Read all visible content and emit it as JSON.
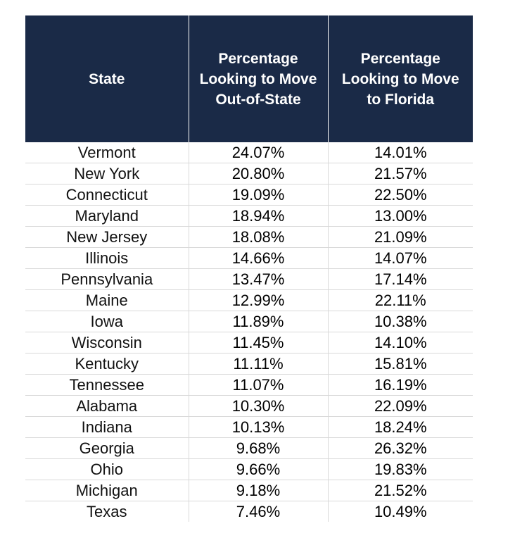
{
  "chart_data": {
    "type": "table",
    "columns": [
      "State",
      "Percentage Looking to Move Out-of-State",
      "Percentage Looking to Move to Florida"
    ],
    "rows": [
      [
        "Vermont",
        "24.07%",
        "14.01%"
      ],
      [
        "New York",
        "20.80%",
        "21.57%"
      ],
      [
        "Connecticut",
        "19.09%",
        "22.50%"
      ],
      [
        "Maryland",
        "18.94%",
        "13.00%"
      ],
      [
        "New Jersey",
        "18.08%",
        "21.09%"
      ],
      [
        "Illinois",
        "14.66%",
        "14.07%"
      ],
      [
        "Pennsylvania",
        "13.47%",
        "17.14%"
      ],
      [
        "Maine",
        "12.99%",
        "22.11%"
      ],
      [
        "Iowa",
        "11.89%",
        "10.38%"
      ],
      [
        "Wisconsin",
        "11.45%",
        "14.10%"
      ],
      [
        "Kentucky",
        "11.11%",
        "15.81%"
      ],
      [
        "Tennessee",
        "11.07%",
        "16.19%"
      ],
      [
        "Alabama",
        "10.30%",
        "22.09%"
      ],
      [
        "Indiana",
        "10.13%",
        "18.24%"
      ],
      [
        "Georgia",
        "9.68%",
        "26.32%"
      ],
      [
        "Ohio",
        "9.66%",
        "19.83%"
      ],
      [
        "Michigan",
        "9.18%",
        "21.52%"
      ],
      [
        "Texas",
        "7.46%",
        "10.49%"
      ]
    ]
  },
  "colors": {
    "header_bg": "#1a2a47",
    "header_text": "#ffffff",
    "gridline": "#d9d9d9"
  }
}
